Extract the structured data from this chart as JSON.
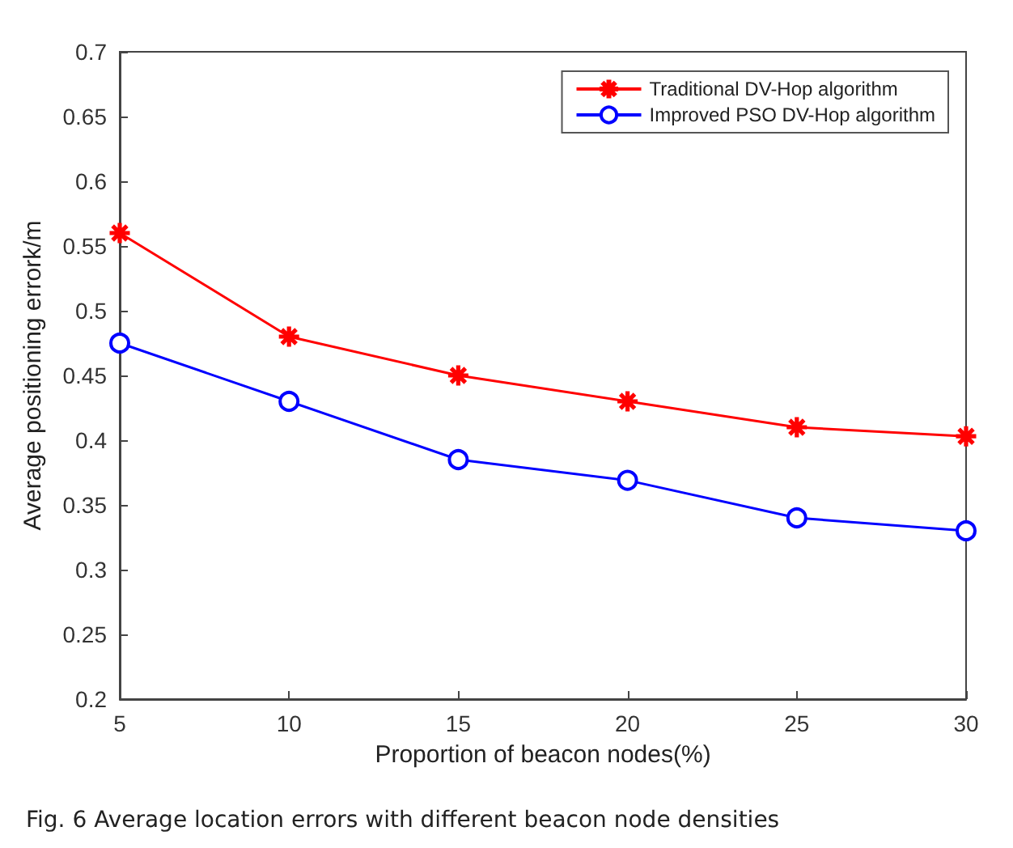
{
  "chart_data": {
    "type": "line",
    "xlabel": "Proportion of beacon nodes(%)",
    "ylabel": "Average positioning errork/m",
    "x": [
      5,
      10,
      15,
      20,
      25,
      30
    ],
    "series": [
      {
        "name": "Traditional DV-Hop algorithm",
        "color": "#ff0000",
        "marker": "star",
        "values": [
          0.56,
          0.48,
          0.45,
          0.43,
          0.41,
          0.403
        ]
      },
      {
        "name": "Improved PSO DV-Hop algorithm",
        "color": "#0000ff",
        "marker": "circle",
        "values": [
          0.475,
          0.43,
          0.385,
          0.369,
          0.34,
          0.33
        ]
      }
    ],
    "xlim": [
      5,
      30
    ],
    "xticks": [
      5,
      10,
      15,
      20,
      25,
      30
    ],
    "ylim": [
      0.2,
      0.7
    ],
    "yticks": [
      0.2,
      0.25,
      0.3,
      0.35,
      0.4,
      0.45,
      0.5,
      0.55,
      0.6,
      0.65,
      0.7
    ],
    "grid": false,
    "legend": "top right",
    "line_style": "solid",
    "annotations": [
      "Fig. 6 Average location errors with different beacon node densities"
    ]
  }
}
